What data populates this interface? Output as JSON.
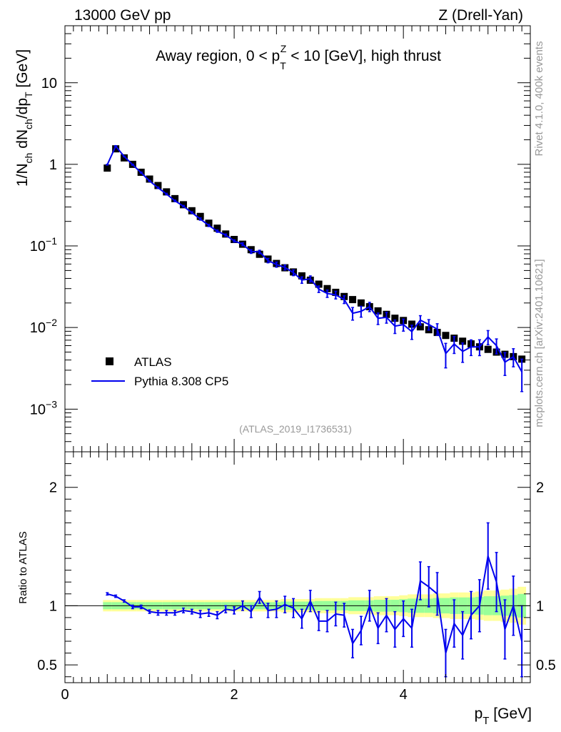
{
  "header": {
    "left": "13000 GeV pp",
    "right": "Z (Drell-Yan)"
  },
  "side_labels": {
    "rivet": "Rivet 4.1.0,  400k events",
    "mcplots": "mcplots.cern.ch [arXiv:2401.10621]"
  },
  "colors": {
    "data": "#000000",
    "mc": "#0000ee",
    "band_yellow": "#ffff99",
    "band_green": "#99ff99",
    "watermark": "#999999"
  },
  "chart_data": {
    "type": "line",
    "title": {
      "prefix": "Away region, 0 < p",
      "sub": "T",
      "sup": "Z",
      "suffix": " < 10 [GeV], high thrust"
    },
    "watermark": "(ATLAS_2019_I1736531)",
    "xlabel": {
      "main": "p",
      "sub": "T",
      "unit": " [GeV]"
    },
    "ylabel": {
      "parts": [
        {
          "t": "1/N",
          "s": "n"
        },
        {
          "t": "ch",
          "s": "sub"
        },
        {
          "t": " dN",
          "s": "n"
        },
        {
          "t": "ch",
          "s": "sub"
        },
        {
          "t": "/dp",
          "s": "n"
        },
        {
          "t": "T",
          "s": "sub"
        },
        {
          "t": " [GeV]",
          "s": "n"
        }
      ]
    },
    "ratio_ylabel": "Ratio to ATLAS",
    "xlim": [
      0,
      5.5
    ],
    "ylim_log": [
      0.0003,
      50
    ],
    "ratio_ylim": [
      0.35,
      2.3
    ],
    "x_ticks": [
      0,
      2,
      4
    ],
    "x_tick_labels": [
      "0",
      "2",
      "4"
    ],
    "y_ticks": [
      {
        "value": 10,
        "base": "10",
        "exp": ""
      },
      {
        "value": 1,
        "base": "1",
        "exp": ""
      },
      {
        "value": 0.1,
        "base": "10",
        "exp": "−1"
      },
      {
        "value": 0.01,
        "base": "10",
        "exp": "−2"
      },
      {
        "value": 0.001,
        "base": "10",
        "exp": "−3"
      }
    ],
    "ratio_ticks": [
      {
        "value": 2,
        "label": "2"
      },
      {
        "value": 1,
        "label": "1"
      },
      {
        "value": 0.5,
        "label": "0.5"
      }
    ],
    "legend": {
      "position": "lower-left",
      "entries": [
        {
          "name": "ATLAS",
          "kind": "marker"
        },
        {
          "name": "Pythia 8.308 CP5",
          "kind": "line"
        }
      ]
    },
    "x": [
      0.5,
      0.6,
      0.7,
      0.8,
      0.9,
      1.0,
      1.1,
      1.2,
      1.3,
      1.4,
      1.5,
      1.6,
      1.7,
      1.8,
      1.9,
      2.0,
      2.1,
      2.2,
      2.3,
      2.4,
      2.5,
      2.6,
      2.7,
      2.8,
      2.9,
      3.0,
      3.1,
      3.2,
      3.3,
      3.4,
      3.5,
      3.6,
      3.7,
      3.8,
      3.9,
      4.0,
      4.1,
      4.2,
      4.3,
      4.4,
      4.5,
      4.6,
      4.7,
      4.8,
      4.9,
      5.0,
      5.1,
      5.2,
      5.3,
      5.4
    ],
    "series": [
      {
        "name": "ATLAS",
        "values": [
          0.9,
          1.55,
          1.2,
          1.0,
          0.8,
          0.66,
          0.55,
          0.46,
          0.38,
          0.32,
          0.27,
          0.23,
          0.19,
          0.165,
          0.14,
          0.12,
          0.105,
          0.09,
          0.079,
          0.069,
          0.061,
          0.054,
          0.048,
          0.043,
          0.038,
          0.034,
          0.03,
          0.027,
          0.024,
          0.022,
          0.02,
          0.018,
          0.016,
          0.0145,
          0.013,
          0.0122,
          0.011,
          0.0102,
          0.0094,
          0.0087,
          0.008,
          0.0074,
          0.0068,
          0.0063,
          0.0058,
          0.0054,
          0.005,
          0.0047,
          0.0044,
          0.0041
        ],
        "band_rel_err": [
          0.03,
          0.03,
          0.03,
          0.03,
          0.03,
          0.03,
          0.03,
          0.03,
          0.03,
          0.03,
          0.03,
          0.03,
          0.03,
          0.03,
          0.03,
          0.03,
          0.03,
          0.03,
          0.03,
          0.03,
          0.03,
          0.035,
          0.035,
          0.035,
          0.035,
          0.04,
          0.04,
          0.04,
          0.04,
          0.045,
          0.045,
          0.045,
          0.05,
          0.05,
          0.05,
          0.055,
          0.06,
          0.06,
          0.06,
          0.065,
          0.065,
          0.07,
          0.07,
          0.07,
          0.075,
          0.08,
          0.08,
          0.085,
          0.09,
          0.1
        ]
      },
      {
        "name": "Pythia 8.308 CP5",
        "ratio": [
          1.1,
          1.08,
          1.04,
          0.99,
          0.99,
          0.95,
          0.94,
          0.94,
          0.94,
          0.96,
          0.95,
          0.93,
          0.94,
          0.92,
          0.97,
          0.96,
          1.0,
          0.95,
          1.07,
          0.96,
          0.97,
          1.01,
          0.98,
          0.89,
          1.04,
          0.87,
          0.87,
          0.93,
          0.92,
          0.68,
          0.79,
          1.0,
          0.81,
          0.92,
          0.8,
          0.89,
          0.81,
          1.21,
          1.16,
          1.1,
          0.6,
          0.85,
          0.75,
          0.92,
          1.0,
          1.42,
          1.2,
          0.8,
          1.0,
          0.7
        ],
        "ratio_err": [
          0.01,
          0.01,
          0.01,
          0.015,
          0.015,
          0.015,
          0.02,
          0.02,
          0.02,
          0.02,
          0.02,
          0.03,
          0.03,
          0.03,
          0.03,
          0.03,
          0.04,
          0.05,
          0.05,
          0.06,
          0.07,
          0.07,
          0.08,
          0.08,
          0.09,
          0.08,
          0.09,
          0.1,
          0.1,
          0.12,
          0.12,
          0.13,
          0.13,
          0.14,
          0.15,
          0.15,
          0.16,
          0.16,
          0.17,
          0.18,
          0.2,
          0.2,
          0.2,
          0.2,
          0.22,
          0.28,
          0.25,
          0.25,
          0.25,
          0.3
        ]
      }
    ]
  }
}
